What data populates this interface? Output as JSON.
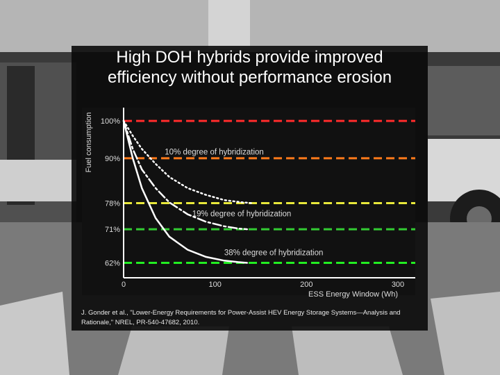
{
  "slide": {
    "title_line1": "High DOH hybrids provide improved",
    "title_line2": "efficiency without performance erosion",
    "caption_line1": "J. Gonder et al., \"Lower-Energy Requirements for Power-Assist HEV Energy Storage Systems—Analysis and",
    "caption_line2": "Rationale,\" NREL, PR-540-47682, 2010."
  },
  "chart_data": {
    "type": "line",
    "title": "",
    "xlabel": "ESS Energy Window (Wh)",
    "ylabel": "Fuel consumption",
    "xlim": [
      0,
      300
    ],
    "ylim": [
      58,
      103
    ],
    "x_ticks": [
      "0",
      "100",
      "200",
      "300"
    ],
    "y_ticks": [
      "100%",
      "90%",
      "78%",
      "71%",
      "62%"
    ],
    "reference_lines": [
      {
        "y": 100,
        "color": "#ff2b2b"
      },
      {
        "y": 90,
        "color": "#ff7a1a"
      },
      {
        "y": 78,
        "color": "#e8e83a"
      },
      {
        "y": 71,
        "color": "#33cc33"
      },
      {
        "y": 62,
        "color": "#22ee22"
      }
    ],
    "series": [
      {
        "name": "10% degree of hybridization",
        "style": "dotted",
        "x": [
          0,
          10,
          20,
          35,
          50,
          70,
          90,
          110,
          130,
          140
        ],
        "y": [
          100,
          96,
          92.5,
          88.5,
          85,
          82,
          80.2,
          78.8,
          78.2,
          78
        ]
      },
      {
        "name": "19% degree of hybridization",
        "style": "dashdot",
        "x": [
          0,
          10,
          20,
          35,
          50,
          70,
          90,
          110,
          125,
          135
        ],
        "y": [
          100,
          92.5,
          87,
          82,
          78.2,
          75,
          73,
          71.8,
          71.2,
          71
        ]
      },
      {
        "name": "38% degree of hybridization",
        "style": "solid",
        "x": [
          0,
          10,
          20,
          35,
          50,
          70,
          90,
          110,
          125,
          135
        ],
        "y": [
          100,
          90,
          82,
          74,
          69,
          65.5,
          63.6,
          62.6,
          62.2,
          62
        ]
      }
    ],
    "annotations": [
      {
        "text": "10% degree of hybridization",
        "series": 0
      },
      {
        "text": "19% degree of hybridization",
        "series": 1
      },
      {
        "text": "38% degree of hybridization",
        "series": 2
      }
    ]
  }
}
